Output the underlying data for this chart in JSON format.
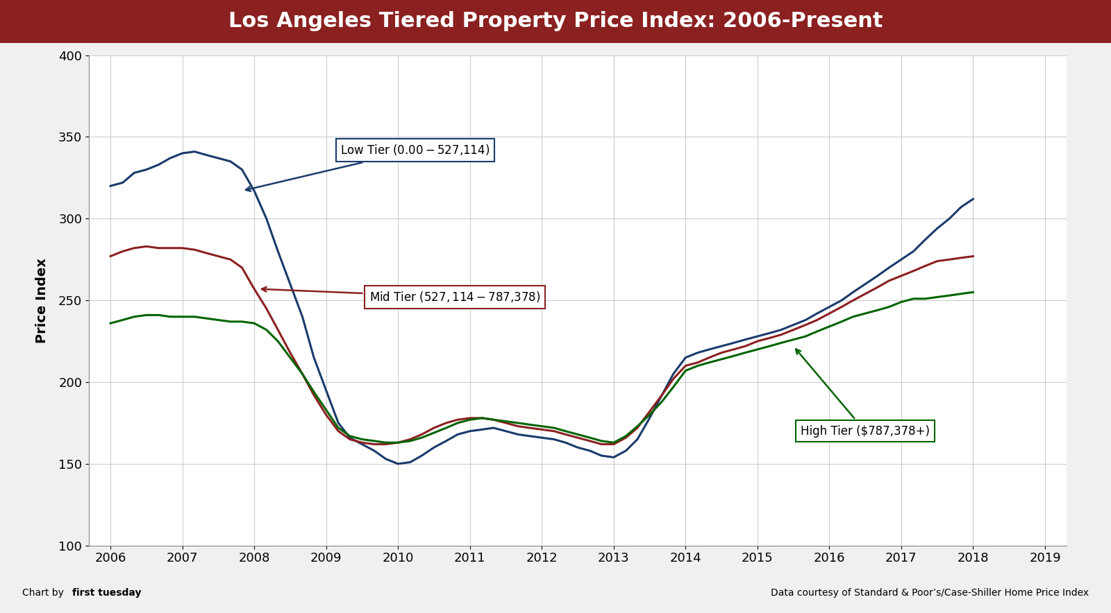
{
  "title": "Los Angeles Tiered Property Price Index: 2006-Present",
  "title_bg_color": "#8B2020",
  "title_text_color": "#FFFFFF",
  "ylabel": "Price Index",
  "xlabel": "",
  "bg_color": "#F0F0F0",
  "plot_bg_color": "#FFFFFF",
  "grid_color": "#CCCCCC",
  "ylim": [
    100,
    400
  ],
  "xlim": [
    2005.7,
    2019.3
  ],
  "yticks": [
    100,
    150,
    200,
    250,
    300,
    350,
    400
  ],
  "xticks": [
    2006,
    2007,
    2008,
    2009,
    2010,
    2011,
    2012,
    2013,
    2014,
    2015,
    2016,
    2017,
    2018,
    2019
  ],
  "footer_left": "Chart by first tuesday",
  "footer_right": "Data courtesy of Standard & Poor’s/Case-Shiller Home Price Index",
  "low_tier_color": "#1a3a6b",
  "mid_tier_color": "#8B2020",
  "high_tier_color": "#006400",
  "low_tier_label": "Low Tier ($0.00 - $527,114)",
  "mid_tier_label": "Mid Tier ($527,114 - $787,378)",
  "high_tier_label": "High Tier ($787,378+)",
  "low_tier_x": [
    2006.0,
    2006.17,
    2006.33,
    2006.5,
    2006.67,
    2006.83,
    2007.0,
    2007.17,
    2007.33,
    2007.5,
    2007.67,
    2007.83,
    2008.0,
    2008.17,
    2008.33,
    2008.5,
    2008.67,
    2008.83,
    2009.0,
    2009.17,
    2009.33,
    2009.5,
    2009.67,
    2009.83,
    2010.0,
    2010.17,
    2010.33,
    2010.5,
    2010.67,
    2010.83,
    2011.0,
    2011.17,
    2011.33,
    2011.5,
    2011.67,
    2011.83,
    2012.0,
    2012.17,
    2012.33,
    2012.5,
    2012.67,
    2012.83,
    2013.0,
    2013.17,
    2013.33,
    2013.5,
    2013.67,
    2013.83,
    2014.0,
    2014.17,
    2014.33,
    2014.5,
    2014.67,
    2014.83,
    2015.0,
    2015.17,
    2015.33,
    2015.5,
    2015.67,
    2015.83,
    2016.0,
    2016.17,
    2016.33,
    2016.5,
    2016.67,
    2016.83,
    2017.0,
    2017.17,
    2017.33,
    2017.5,
    2017.67,
    2017.83,
    2018.0
  ],
  "low_tier_y": [
    320,
    322,
    328,
    330,
    333,
    337,
    340,
    341,
    339,
    337,
    335,
    330,
    317,
    300,
    280,
    260,
    240,
    215,
    195,
    175,
    166,
    162,
    158,
    153,
    150,
    151,
    155,
    160,
    164,
    168,
    170,
    171,
    172,
    170,
    168,
    167,
    166,
    165,
    163,
    160,
    158,
    155,
    154,
    158,
    165,
    178,
    192,
    205,
    215,
    218,
    220,
    222,
    224,
    226,
    228,
    230,
    232,
    235,
    238,
    242,
    246,
    250,
    255,
    260,
    265,
    270,
    275,
    280,
    287,
    294,
    300,
    307,
    312
  ],
  "mid_tier_x": [
    2006.0,
    2006.17,
    2006.33,
    2006.5,
    2006.67,
    2006.83,
    2007.0,
    2007.17,
    2007.33,
    2007.5,
    2007.67,
    2007.83,
    2008.0,
    2008.17,
    2008.33,
    2008.5,
    2008.67,
    2008.83,
    2009.0,
    2009.17,
    2009.33,
    2009.5,
    2009.67,
    2009.83,
    2010.0,
    2010.17,
    2010.33,
    2010.5,
    2010.67,
    2010.83,
    2011.0,
    2011.17,
    2011.33,
    2011.5,
    2011.67,
    2011.83,
    2012.0,
    2012.17,
    2012.33,
    2012.5,
    2012.67,
    2012.83,
    2013.0,
    2013.17,
    2013.33,
    2013.5,
    2013.67,
    2013.83,
    2014.0,
    2014.17,
    2014.33,
    2014.5,
    2014.67,
    2014.83,
    2015.0,
    2015.17,
    2015.33,
    2015.5,
    2015.67,
    2015.83,
    2016.0,
    2016.17,
    2016.33,
    2016.5,
    2016.67,
    2016.83,
    2017.0,
    2017.17,
    2017.33,
    2017.5,
    2017.67,
    2017.83,
    2018.0
  ],
  "mid_tier_y": [
    277,
    280,
    282,
    283,
    282,
    282,
    282,
    281,
    279,
    277,
    275,
    270,
    257,
    245,
    232,
    218,
    205,
    192,
    180,
    170,
    165,
    163,
    162,
    162,
    163,
    165,
    168,
    172,
    175,
    177,
    178,
    178,
    177,
    175,
    173,
    172,
    171,
    170,
    168,
    166,
    164,
    162,
    162,
    166,
    172,
    182,
    192,
    202,
    210,
    212,
    215,
    218,
    220,
    222,
    225,
    227,
    229,
    232,
    235,
    238,
    242,
    246,
    250,
    254,
    258,
    262,
    265,
    268,
    271,
    274,
    275,
    276,
    277
  ],
  "high_tier_x": [
    2006.0,
    2006.17,
    2006.33,
    2006.5,
    2006.67,
    2006.83,
    2007.0,
    2007.17,
    2007.33,
    2007.5,
    2007.67,
    2007.83,
    2008.0,
    2008.17,
    2008.33,
    2008.5,
    2008.67,
    2008.83,
    2009.0,
    2009.17,
    2009.33,
    2009.5,
    2009.67,
    2009.83,
    2010.0,
    2010.17,
    2010.33,
    2010.5,
    2010.67,
    2010.83,
    2011.0,
    2011.17,
    2011.33,
    2011.5,
    2011.67,
    2011.83,
    2012.0,
    2012.17,
    2012.33,
    2012.5,
    2012.67,
    2012.83,
    2013.0,
    2013.17,
    2013.33,
    2013.5,
    2013.67,
    2013.83,
    2014.0,
    2014.17,
    2014.33,
    2014.5,
    2014.67,
    2014.83,
    2015.0,
    2015.17,
    2015.33,
    2015.5,
    2015.67,
    2015.83,
    2016.0,
    2016.17,
    2016.33,
    2016.5,
    2016.67,
    2016.83,
    2017.0,
    2017.17,
    2017.33,
    2017.5,
    2017.67,
    2017.83,
    2018.0
  ],
  "high_tier_y": [
    236,
    238,
    240,
    241,
    241,
    240,
    240,
    240,
    239,
    238,
    237,
    237,
    236,
    232,
    225,
    215,
    205,
    194,
    183,
    172,
    167,
    165,
    164,
    163,
    163,
    164,
    166,
    169,
    172,
    175,
    177,
    178,
    177,
    176,
    175,
    174,
    173,
    172,
    170,
    168,
    166,
    164,
    163,
    167,
    173,
    180,
    188,
    197,
    207,
    210,
    212,
    214,
    216,
    218,
    220,
    222,
    224,
    226,
    228,
    231,
    234,
    237,
    240,
    242,
    244,
    246,
    249,
    251,
    251,
    252,
    253,
    254,
    255
  ]
}
